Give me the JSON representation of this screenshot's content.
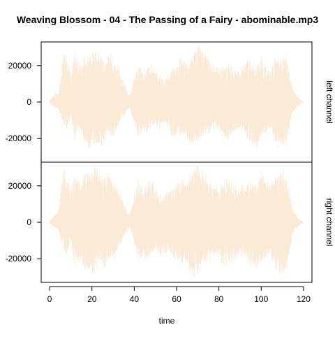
{
  "chart_data": {
    "type": "area",
    "title": "Weaving Blossom - 04 - The Passing of a Fairy - abominable.mp3",
    "xlabel": "time",
    "xlim": [
      -4,
      124
    ],
    "x_ticks": [
      0,
      20,
      40,
      60,
      80,
      100,
      120
    ],
    "fill_color": "#FAEBD7",
    "axis_color": "#000000",
    "duration": 120,
    "panels": [
      {
        "name": "left channel",
        "ylim": [
          -33000,
          33000
        ],
        "y_ticks": [
          -20000,
          0,
          20000
        ],
        "envelope": {
          "x": [
            0,
            1,
            2,
            4,
            5,
            6,
            7,
            8,
            9,
            10,
            12,
            14,
            16,
            18,
            20,
            22,
            24,
            26,
            28,
            30,
            32,
            34,
            36,
            37,
            38,
            40,
            42,
            44,
            46,
            48,
            50,
            52,
            54,
            56,
            58,
            60,
            62,
            64,
            66,
            68,
            70,
            72,
            74,
            76,
            78,
            80,
            82,
            84,
            86,
            88,
            90,
            92,
            94,
            96,
            98,
            100,
            102,
            104,
            106,
            108,
            110,
            112,
            113,
            114,
            115,
            116,
            117,
            118,
            119,
            120
          ],
          "peak": [
            1000,
            2500,
            4000,
            6000,
            12000,
            23000,
            31000,
            27000,
            20000,
            18000,
            27000,
            22000,
            24000,
            27000,
            29000,
            31000,
            27000,
            22000,
            29000,
            21000,
            23000,
            14000,
            9000,
            5000,
            4500,
            15000,
            22000,
            17000,
            19000,
            23000,
            18000,
            15000,
            13000,
            15000,
            19000,
            20000,
            24000,
            22000,
            20000,
            29000,
            32000,
            31000,
            27000,
            20000,
            21000,
            18000,
            20000,
            21000,
            21000,
            19000,
            18000,
            22000,
            23000,
            20000,
            19000,
            26000,
            22000,
            18000,
            24000,
            23000,
            29000,
            25000,
            19000,
            12000,
            8000,
            5000,
            3500,
            2000,
            1000,
            500
          ],
          "trough": [
            -800,
            -1500,
            -2500,
            -4000,
            -7000,
            -10000,
            -14000,
            -16000,
            -12000,
            -10000,
            -20000,
            -16000,
            -20000,
            -26000,
            -28000,
            -24000,
            -25000,
            -22000,
            -17000,
            -20000,
            -15000,
            -9000,
            -6000,
            -4000,
            -3500,
            -12000,
            -21000,
            -15000,
            -18000,
            -14000,
            -13000,
            -16000,
            -12000,
            -14000,
            -20000,
            -20000,
            -18000,
            -17000,
            -23000,
            -24000,
            -22000,
            -20000,
            -18000,
            -17000,
            -14000,
            -15000,
            -21000,
            -22000,
            -18000,
            -17000,
            -15000,
            -17000,
            -20000,
            -24000,
            -26000,
            -19000,
            -18000,
            -16000,
            -21000,
            -25000,
            -25000,
            -24000,
            -18000,
            -10000,
            -6000,
            -4000,
            -3000,
            -2000,
            -1000,
            -500
          ]
        }
      },
      {
        "name": "right channel",
        "ylim": [
          -33000,
          33000
        ],
        "y_ticks": [
          -20000,
          0,
          20000
        ],
        "envelope": {
          "x": [
            0,
            1,
            2,
            4,
            5,
            6,
            7,
            8,
            9,
            10,
            12,
            14,
            16,
            18,
            20,
            22,
            24,
            26,
            28,
            30,
            32,
            34,
            36,
            37,
            38,
            40,
            42,
            44,
            46,
            48,
            50,
            52,
            54,
            56,
            58,
            60,
            62,
            64,
            66,
            68,
            70,
            72,
            74,
            76,
            78,
            80,
            82,
            84,
            86,
            88,
            90,
            92,
            94,
            96,
            98,
            100,
            102,
            104,
            106,
            108,
            110,
            112,
            113,
            114,
            115,
            116,
            117,
            118,
            119,
            120
          ],
          "peak": [
            1000,
            2500,
            4000,
            6000,
            14000,
            28000,
            30000,
            26000,
            21000,
            18000,
            28000,
            23000,
            25000,
            29000,
            31000,
            31000,
            26000,
            24000,
            30000,
            21000,
            22000,
            14000,
            9000,
            5000,
            4500,
            16000,
            24000,
            18000,
            20000,
            25000,
            20000,
            16000,
            14000,
            17000,
            21000,
            22000,
            25000,
            22000,
            24000,
            29000,
            31000,
            30000,
            27000,
            22000,
            22000,
            18000,
            22000,
            23000,
            22000,
            20000,
            19000,
            23000,
            22000,
            21000,
            22000,
            28000,
            24000,
            21000,
            24000,
            27000,
            30000,
            26000,
            19000,
            12000,
            8000,
            5000,
            3500,
            2000,
            1000,
            500
          ],
          "trough": [
            -800,
            -1500,
            -2500,
            -4000,
            -8000,
            -14000,
            -16000,
            -20000,
            -14000,
            -12000,
            -26000,
            -21000,
            -24000,
            -28000,
            -31000,
            -26000,
            -22000,
            -25000,
            -22000,
            -21000,
            -18000,
            -11000,
            -7000,
            -4000,
            -3500,
            -12000,
            -22000,
            -19000,
            -21000,
            -18000,
            -15000,
            -20000,
            -17000,
            -16000,
            -20000,
            -22000,
            -23000,
            -21000,
            -26000,
            -31000,
            -28000,
            -24000,
            -22000,
            -21000,
            -19000,
            -18000,
            -25000,
            -23000,
            -21000,
            -21000,
            -18000,
            -20000,
            -22000,
            -24000,
            -28000,
            -22000,
            -21000,
            -18000,
            -24000,
            -30000,
            -29000,
            -27000,
            -20000,
            -12000,
            -7000,
            -4000,
            -3000,
            -2000,
            -1000,
            -500
          ]
        }
      }
    ]
  }
}
